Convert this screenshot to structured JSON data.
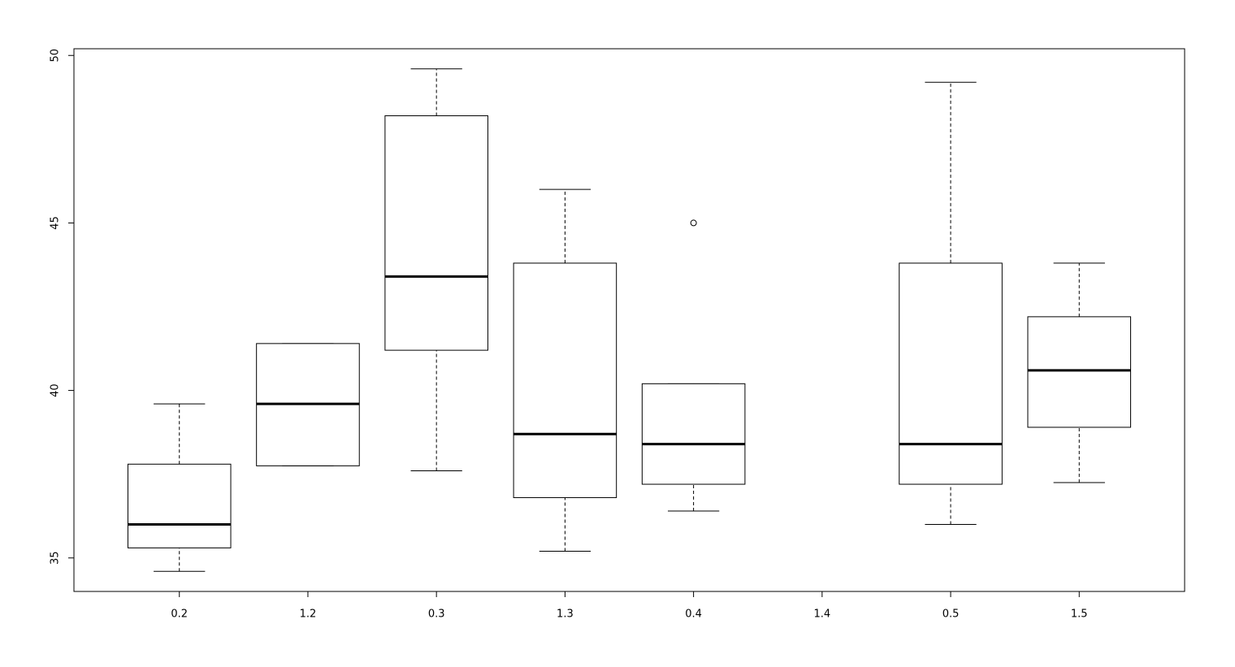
{
  "chart_data": {
    "type": "boxplot",
    "categories": [
      "0.2",
      "1.2",
      "0.3",
      "1.3",
      "0.4",
      "1.4",
      "0.5",
      "1.5"
    ],
    "min": [
      34.6,
      37.75,
      37.6,
      35.2,
      36.4,
      null,
      36.0,
      37.25
    ],
    "q1": [
      35.3,
      37.75,
      41.2,
      36.8,
      37.2,
      null,
      37.2,
      38.9
    ],
    "median": [
      36.0,
      39.6,
      43.4,
      38.7,
      38.4,
      null,
      38.4,
      40.6
    ],
    "q3": [
      37.8,
      41.4,
      48.2,
      43.8,
      40.2,
      null,
      43.8,
      42.2
    ],
    "max": [
      39.6,
      41.4,
      49.6,
      46.0,
      40.2,
      null,
      49.2,
      43.8
    ],
    "outliers": [
      [],
      [],
      [],
      [],
      [
        45.0
      ],
      [],
      [],
      []
    ],
    "color": "#000000",
    "ylim": [
      34.0,
      50.2
    ],
    "yticks": [
      35,
      40,
      45,
      50
    ]
  }
}
